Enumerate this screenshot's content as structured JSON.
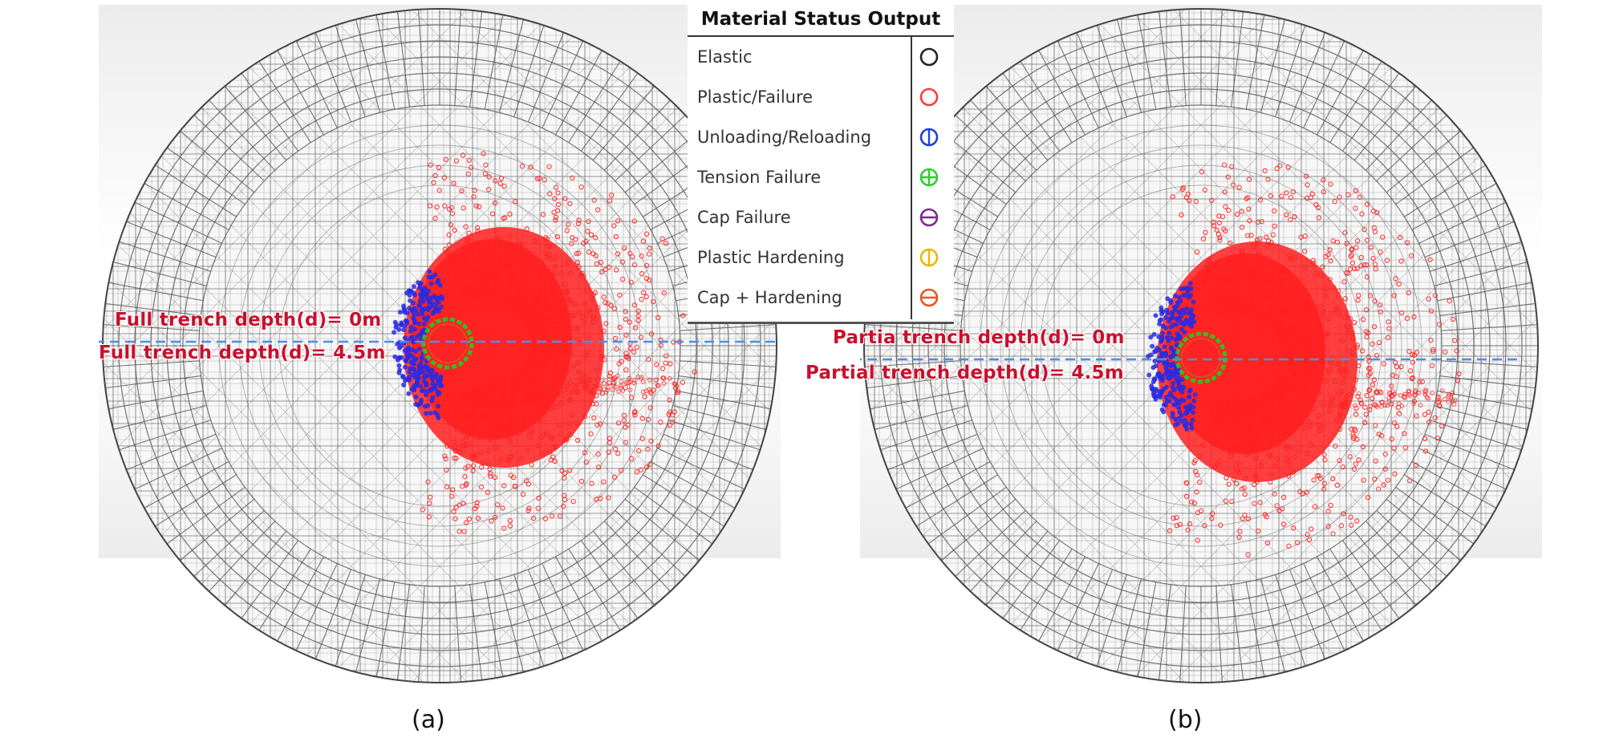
{
  "legend": {
    "title": "Material Status Output",
    "items": [
      {
        "label": "Elastic",
        "color": "#222222",
        "mark": "none"
      },
      {
        "label": "Plastic/Failure",
        "color": "#ff3b3b",
        "mark": "none"
      },
      {
        "label": "Unloading/Reloading",
        "color": "#1f3fd8",
        "mark": "vertical"
      },
      {
        "label": "Tension Failure",
        "color": "#2ecc2e",
        "mark": "cross"
      },
      {
        "label": "Cap Failure",
        "color": "#7b2a8e",
        "mark": "horizontal"
      },
      {
        "label": "Plastic Hardening",
        "color": "#f0b400",
        "mark": "vertical"
      },
      {
        "label": "Cap + Hardening",
        "color": "#e8541c",
        "mark": "horizontal"
      }
    ]
  },
  "panels": [
    {
      "caption": "(a)",
      "label_top": "Full trench depth(d)= 0m",
      "label_bottom": "Full trench depth(d)= 4.5m"
    },
    {
      "caption": "(b)",
      "label_top": "Partia trench depth(d)= 0m",
      "label_bottom": "Partial trench depth(d)= 4.5m"
    }
  ],
  "colors": {
    "mesh": "#555555",
    "mesh_light": "#9a9a9a",
    "trench_line": "#4a90e2",
    "label": "#c8102e",
    "plastic": "#ff2020",
    "unloading": "#2a2ae0",
    "tension": "#22cc22"
  }
}
